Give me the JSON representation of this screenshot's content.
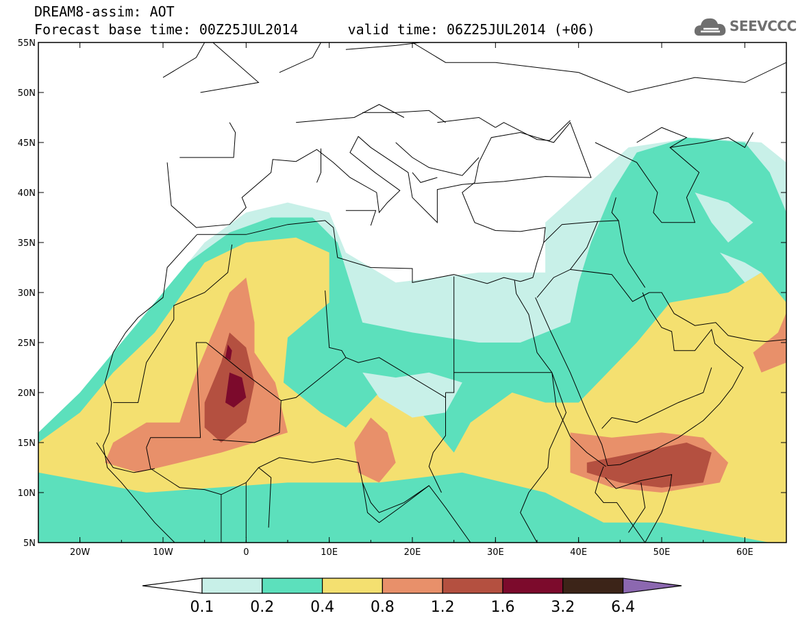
{
  "title": {
    "line1": "DREAM8-assim: AOT",
    "line2_base": "Forecast base time: 00Z25JUL2014",
    "line2_valid": "valid time: 06Z25JUL2014 (+06)"
  },
  "logo": {
    "text": "SEEVCCC",
    "icon": "cloud-icon"
  },
  "map": {
    "lon_range": [
      -25,
      65
    ],
    "lat_range": [
      5,
      55
    ],
    "lon_ticks": [
      {
        "v": -20,
        "label": "20W"
      },
      {
        "v": -10,
        "label": "10W"
      },
      {
        "v": 0,
        "label": "0"
      },
      {
        "v": 10,
        "label": "10E"
      },
      {
        "v": 20,
        "label": "20E"
      },
      {
        "v": 30,
        "label": "30E"
      },
      {
        "v": 40,
        "label": "40E"
      },
      {
        "v": 50,
        "label": "50E"
      },
      {
        "v": 60,
        "label": "60E"
      }
    ],
    "lat_ticks": [
      {
        "v": 55,
        "label": "55N"
      },
      {
        "v": 50,
        "label": "50N"
      },
      {
        "v": 45,
        "label": "45N"
      },
      {
        "v": 40,
        "label": "40N"
      },
      {
        "v": 35,
        "label": "35N"
      },
      {
        "v": 30,
        "label": "30N"
      },
      {
        "v": 25,
        "label": "25N"
      },
      {
        "v": 20,
        "label": "20N"
      },
      {
        "v": 15,
        "label": "15N"
      },
      {
        "v": 10,
        "label": "10N"
      },
      {
        "v": 5,
        "label": "5N"
      }
    ]
  },
  "colorbar": {
    "colors": [
      "#ffffff",
      "#c8f0e8",
      "#5ce0bc",
      "#f4e070",
      "#e8906a",
      "#b45040",
      "#7c0a2c",
      "#3c2418",
      "#8c68b0"
    ],
    "labels": [
      "0.1",
      "0.2",
      "0.4",
      "0.8",
      "1.2",
      "1.6",
      "3.2",
      "6.4"
    ]
  }
}
